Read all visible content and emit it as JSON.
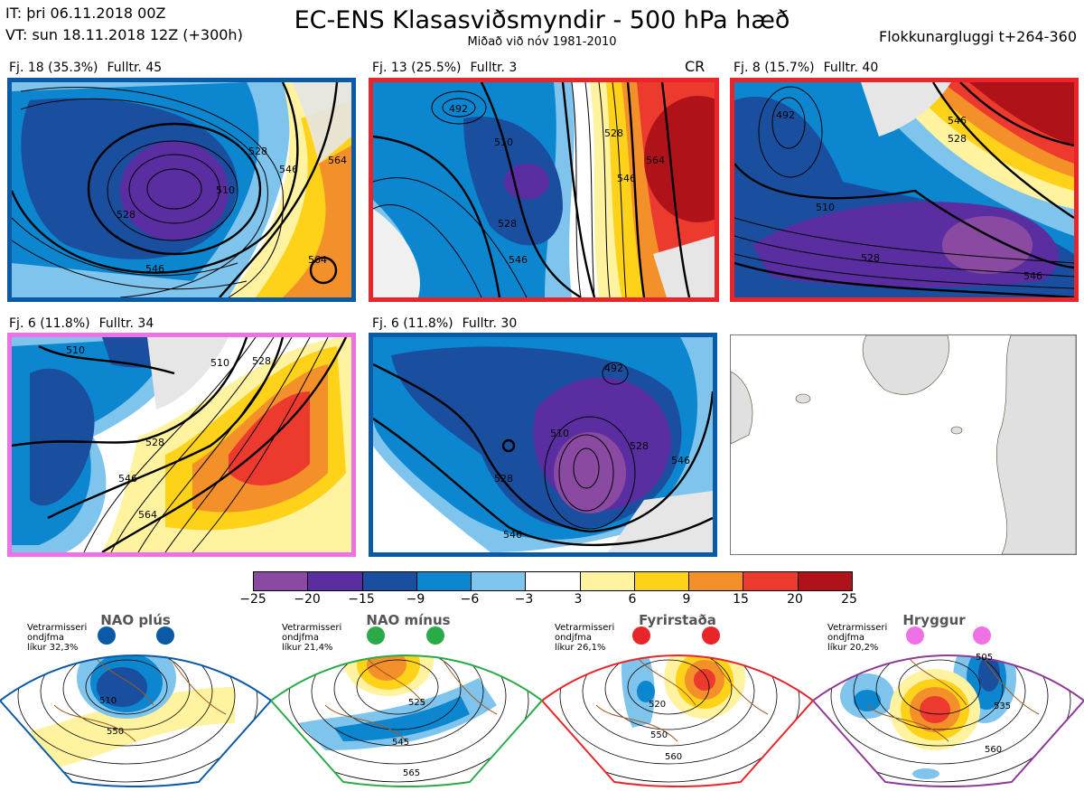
{
  "header": {
    "it": "IT: þri 06.11.2018 00Z",
    "vt": "VT: sun 18.11.2018 12Z  (+300h)",
    "title": "EC-ENS Klasasviðsmyndir - 500 hPa hæð",
    "subtitle": "Miðað við nóv 1981-2010",
    "window": "Flokkunargluggi t+264-360"
  },
  "panels": [
    {
      "fj": "Fj. 18 (35.3%)",
      "fulltr": "Fulltr. 45",
      "border": "#0b5aa6",
      "tag": "",
      "contours": [
        "510",
        "528",
        "546",
        "564",
        "564",
        "528",
        "546"
      ]
    },
    {
      "fj": "Fj. 13 (25.5%)",
      "fulltr": "Fulltr. 3",
      "border": "#e8262a",
      "tag": "CR",
      "contours": [
        "492",
        "510",
        "528",
        "546",
        "564",
        "528",
        "546"
      ]
    },
    {
      "fj": "Fj. 8 (15.7%)",
      "fulltr": "Fulltr. 40",
      "border": "#e8262a",
      "tag": "",
      "contours": [
        "492",
        "510",
        "528",
        "546",
        "528",
        "546"
      ]
    },
    {
      "fj": "Fj. 6 (11.8%)",
      "fulltr": "Fulltr. 34",
      "border": "#ee72e6",
      "tag": "",
      "contours": [
        "510",
        "528",
        "546",
        "564",
        "510",
        "528"
      ]
    },
    {
      "fj": "Fj. 6 (11.8%)",
      "fulltr": "Fulltr. 30",
      "border": "#0b5aa6",
      "tag": "",
      "contours": [
        "492",
        "510",
        "528",
        "546",
        "528",
        "546"
      ]
    }
  ],
  "colorbar": {
    "ticks": [
      "−25",
      "−20",
      "−15",
      "−9",
      "−6",
      "−3",
      "3",
      "6",
      "9",
      "15",
      "20",
      "25"
    ],
    "colors": [
      "#8a4aa2",
      "#5a2ea0",
      "#1a4fa0",
      "#0d86d0",
      "#7fc4ec",
      "#ffffff",
      "#fff3a0",
      "#ffd21a",
      "#f4902a",
      "#ec3a2e",
      "#b0121a"
    ]
  },
  "regimes": [
    {
      "name": "NAO plús",
      "season": "Vetrarmisseri",
      "type": "ondjfma",
      "prob": "líkur 32,3%",
      "border": "#0b5aa6",
      "dot": "#0b5aa6",
      "labels": [
        "510",
        "550"
      ]
    },
    {
      "name": "NAO mínus",
      "season": "Vetrarmisseri",
      "type": "ondjfma",
      "prob": "líkur 21,4%",
      "border": "#2aaa48",
      "dot": "#2aaa48",
      "labels": [
        "525",
        "545",
        "565"
      ]
    },
    {
      "name": "Fyrirstaða",
      "season": "Vetrarmisseri",
      "type": "ondjfma",
      "prob": "líkur 26,1%",
      "border": "#e8262a",
      "dot": "#e8262a",
      "labels": [
        "520",
        "550",
        "560"
      ]
    },
    {
      "name": "Hryggur",
      "season": "Vetrarmisseri",
      "type": "ondjfma",
      "prob": "líkur 20,2%",
      "border": "#8e3a96",
      "dot": "#ee72e6",
      "labels": [
        "505",
        "535",
        "560"
      ]
    }
  ]
}
